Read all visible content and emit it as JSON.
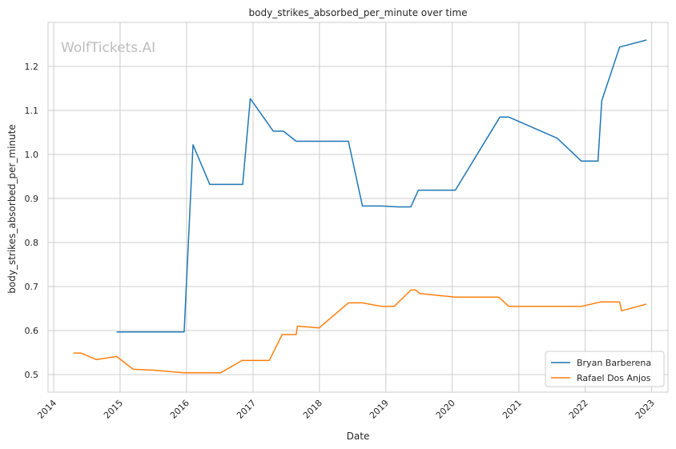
{
  "chart_data": {
    "type": "line",
    "title": "body_strikes_absorbed_per_minute over time",
    "xlabel": "Date",
    "ylabel": "body_strikes_absorbed_per_minute",
    "watermark": "WolfTickets.AI",
    "x_ticks": [
      "2014",
      "2015",
      "2016",
      "2017",
      "2018",
      "2019",
      "2020",
      "2021",
      "2022",
      "2023"
    ],
    "y_ticks": [
      "0.5",
      "0.6",
      "0.7",
      "0.8",
      "0.9",
      "1.0",
      "1.1",
      "1.2"
    ],
    "xlim": [
      "2013-12-01",
      "2023-04-01"
    ],
    "ylim": [
      0.46,
      1.3
    ],
    "grid": true,
    "legend_position": "bottom-right",
    "series": [
      {
        "name": "Bryan Barberena",
        "color": "#1f77b4",
        "points": [
          [
            "2014-12-13",
            0.597
          ],
          [
            "2015-12-19",
            0.597
          ],
          [
            "2016-02-06",
            1.022
          ],
          [
            "2016-05-08",
            0.932
          ],
          [
            "2016-11-05",
            0.932
          ],
          [
            "2016-12-17",
            1.127
          ],
          [
            "2017-04-22",
            1.053
          ],
          [
            "2017-06-17",
            1.053
          ],
          [
            "2017-08-26",
            1.03
          ],
          [
            "2018-06-09",
            1.03
          ],
          [
            "2018-08-25",
            0.883
          ],
          [
            "2018-12-08",
            0.883
          ],
          [
            "2019-03-09",
            0.881
          ],
          [
            "2019-05-18",
            0.881
          ],
          [
            "2019-06-29",
            0.919
          ],
          [
            "2020-01-18",
            0.919
          ],
          [
            "2020-09-19",
            1.085
          ],
          [
            "2020-11-07",
            1.085
          ],
          [
            "2021-07-31",
            1.037
          ],
          [
            "2021-12-11",
            0.985
          ],
          [
            "2022-03-12",
            0.985
          ],
          [
            "2022-04-02",
            1.122
          ],
          [
            "2022-07-09",
            1.244
          ],
          [
            "2022-12-03",
            1.26
          ]
        ]
      },
      {
        "name": "Rafael Dos Anjos",
        "color": "#ff7f0e",
        "points": [
          [
            "2014-04-19",
            0.549
          ],
          [
            "2014-05-31",
            0.549
          ],
          [
            "2014-08-23",
            0.534
          ],
          [
            "2014-12-13",
            0.541
          ],
          [
            "2015-03-14",
            0.512
          ],
          [
            "2015-07-01",
            0.51
          ],
          [
            "2015-12-19",
            0.504
          ],
          [
            "2016-07-07",
            0.504
          ],
          [
            "2016-11-01",
            0.532
          ],
          [
            "2017-03-31",
            0.532
          ],
          [
            "2017-06-10",
            0.591
          ],
          [
            "2017-08-26",
            0.591
          ],
          [
            "2017-09-02",
            0.61
          ],
          [
            "2017-12-30",
            0.606
          ],
          [
            "2018-06-09",
            0.663
          ],
          [
            "2018-08-25",
            0.663
          ],
          [
            "2018-12-08",
            0.655
          ],
          [
            "2019-02-16",
            0.655
          ],
          [
            "2019-05-18",
            0.692
          ],
          [
            "2019-06-15",
            0.692
          ],
          [
            "2019-07-06",
            0.684
          ],
          [
            "2020-01-18",
            0.676
          ],
          [
            "2020-09-12",
            0.676
          ],
          [
            "2020-11-07",
            0.655
          ],
          [
            "2021-12-11",
            0.655
          ],
          [
            "2022-03-26",
            0.665
          ],
          [
            "2022-07-09",
            0.665
          ],
          [
            "2022-07-20",
            0.645
          ],
          [
            "2022-12-03",
            0.66
          ]
        ]
      }
    ]
  }
}
